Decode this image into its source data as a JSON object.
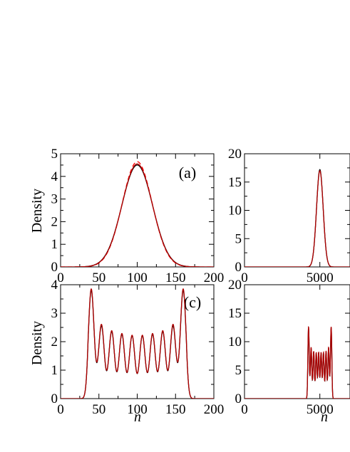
{
  "chart_data": [
    {
      "panel_label": "(a)",
      "type": "line",
      "ylabel": "Density",
      "xlabel": "",
      "xlim": [
        0,
        200
      ],
      "ylim": [
        0,
        5
      ],
      "x_ticks": [
        "0",
        "50",
        "100",
        "150",
        "200"
      ],
      "y_ticks": [
        "0",
        "1",
        "2",
        "3",
        "4",
        "5"
      ],
      "series": [
        {
          "style": "solid",
          "color": "#000000",
          "profile": "gaussian",
          "center": 100,
          "peak": 4.5,
          "sigma": 20
        },
        {
          "style": "dashed",
          "color": "#ff0000",
          "profile": "gaussian",
          "center": 100,
          "peak": 4.65,
          "sigma": 19.5
        },
        {
          "style": "solid",
          "color": "#b00000",
          "profile": "gaussian",
          "center": 100,
          "peak": 4.55,
          "sigma": 19.8
        }
      ]
    },
    {
      "panel_label": "",
      "type": "line",
      "ylabel": "",
      "xlabel": "",
      "xlim": [
        0,
        7000
      ],
      "ylim": [
        0,
        20
      ],
      "x_ticks": [
        "0",
        "5000"
      ],
      "y_ticks": [
        "0",
        "5",
        "10",
        "15",
        "20"
      ],
      "series": [
        {
          "style": "solid",
          "color": "#000000",
          "profile": "gaussian",
          "center": 5000,
          "peak": 17.2,
          "sigma": 220
        },
        {
          "style": "solid",
          "color": "#b00000",
          "profile": "gaussian",
          "center": 5000,
          "peak": 17.0,
          "sigma": 222
        }
      ]
    },
    {
      "panel_label": "(c)",
      "type": "line",
      "ylabel": "Density",
      "xlabel": "n",
      "xlim": [
        0,
        200
      ],
      "ylim": [
        0,
        4
      ],
      "x_ticks": [
        "0",
        "50",
        "100",
        "150",
        "200"
      ],
      "y_ticks": [
        "0",
        "1",
        "2",
        "3",
        "4"
      ],
      "series": [
        {
          "style": "solid",
          "color": "#000000",
          "profile": "fringes",
          "peak_positions": [
            40,
            53.3,
            66.7,
            80,
            93.3,
            106.7,
            120,
            133.3,
            146.7,
            160
          ],
          "peak_heights": [
            3.8,
            2.55,
            2.35,
            2.25,
            2.2,
            2.2,
            2.25,
            2.35,
            2.55,
            3.8
          ],
          "envelope_start": 24,
          "envelope_end": 176
        },
        {
          "style": "solid",
          "color": "#b00000",
          "profile": "fringes",
          "peak_positions": [
            40,
            53.3,
            66.7,
            80,
            93.3,
            106.7,
            120,
            133.3,
            146.7,
            160
          ],
          "peak_heights": [
            3.85,
            2.6,
            2.38,
            2.28,
            2.22,
            2.22,
            2.28,
            2.38,
            2.6,
            3.85
          ],
          "envelope_start": 24,
          "envelope_end": 176
        }
      ]
    },
    {
      "panel_label": "",
      "type": "line",
      "ylabel": "",
      "xlabel": "n",
      "xlim": [
        0,
        7000
      ],
      "ylim": [
        0,
        20
      ],
      "x_ticks": [
        "0",
        "5000"
      ],
      "y_ticks": [
        "0",
        "5",
        "10",
        "15",
        "20"
      ],
      "series": [
        {
          "style": "solid",
          "color": "#000000",
          "profile": "fringes",
          "peak_positions": [
            4250,
            4420,
            4590,
            4760,
            4920,
            5080,
            5240,
            5410,
            5580,
            5750
          ],
          "peak_heights": [
            12.4,
            8.8,
            8.2,
            8.0,
            8.0,
            8.0,
            8.0,
            8.2,
            8.8,
            12.4
          ],
          "envelope_start": 4050,
          "envelope_end": 5950
        },
        {
          "style": "solid",
          "color": "#b00000",
          "profile": "fringes",
          "peak_positions": [
            4250,
            4420,
            4590,
            4760,
            4920,
            5080,
            5240,
            5410,
            5580,
            5750
          ],
          "peak_heights": [
            12.6,
            9.0,
            8.3,
            8.1,
            8.1,
            8.1,
            8.1,
            8.3,
            9.0,
            12.6
          ],
          "envelope_start": 4050,
          "envelope_end": 5950
        }
      ]
    }
  ]
}
